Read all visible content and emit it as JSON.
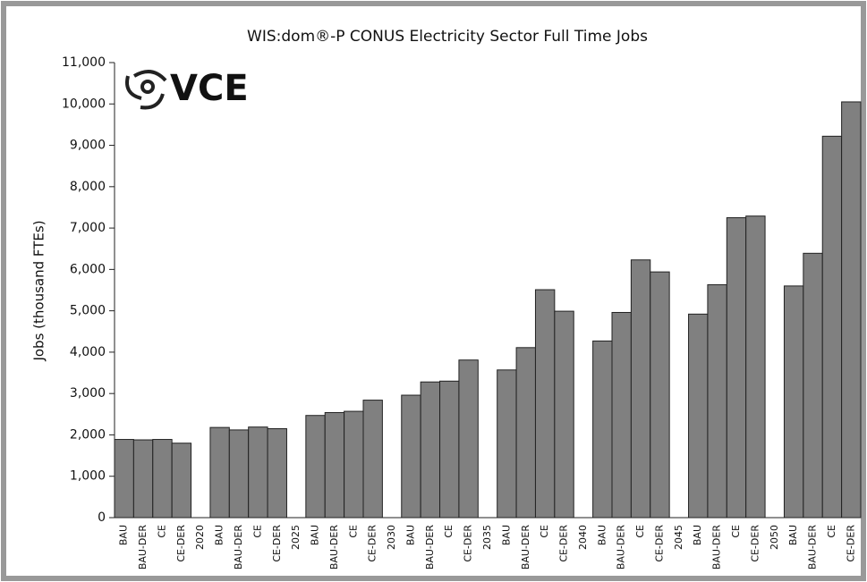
{
  "chart_data": {
    "type": "bar",
    "title": "WIS:dom®-P CONUS Electricity Sector Full Time Jobs",
    "y_label": "Jobs (thousand FTEs)",
    "logo": "VCE",
    "color": "#808080",
    "categories": [
      "BAU",
      "BAU-DER",
      "CE",
      "CE-DER",
      "2020",
      "BAU",
      "BAU-DER",
      "CE",
      "CE-DER",
      "2025",
      "BAU",
      "BAU-DER",
      "CE",
      "CE-DER",
      "2030",
      "BAU",
      "BAU-DER",
      "CE",
      "CE-DER",
      "2035",
      "BAU",
      "BAU-DER",
      "CE",
      "CE-DER",
      "2040",
      "BAU",
      "BAU-DER",
      "CE",
      "CE-DER",
      "2045",
      "BAU",
      "BAU-DER",
      "CE",
      "CE-DER",
      "2050",
      "BAU",
      "BAU-DER",
      "CE",
      "CE-DER"
    ],
    "values": [
      1890,
      1880,
      1890,
      1800,
      null,
      2180,
      2120,
      2190,
      2150,
      null,
      2470,
      2540,
      2570,
      2840,
      null,
      2960,
      3280,
      3300,
      3810,
      null,
      3570,
      4110,
      5510,
      4990,
      null,
      4270,
      4960,
      6230,
      5940,
      null,
      4920,
      5630,
      7250,
      7290,
      null,
      5600,
      6390,
      9220,
      10050
    ],
    "ylim": [
      0,
      11000
    ],
    "yticks": [
      0,
      {
        "value": 1000,
        "label": "1,000"
      },
      {
        "value": 2000,
        "label": "2,000"
      },
      {
        "value": 3000,
        "label": "3,000"
      },
      {
        "value": 4000,
        "label": "4,000"
      },
      {
        "value": 5000,
        "label": "5,000"
      },
      {
        "value": 6000,
        "label": "6,000"
      },
      {
        "value": 7000,
        "label": "7,000"
      },
      {
        "value": 8000,
        "label": "8,000"
      },
      {
        "value": 9000,
        "label": "9,000"
      },
      {
        "value": 10000,
        "label": "10,000"
      },
      {
        "value": 11000,
        "label": "11,000"
      }
    ]
  }
}
